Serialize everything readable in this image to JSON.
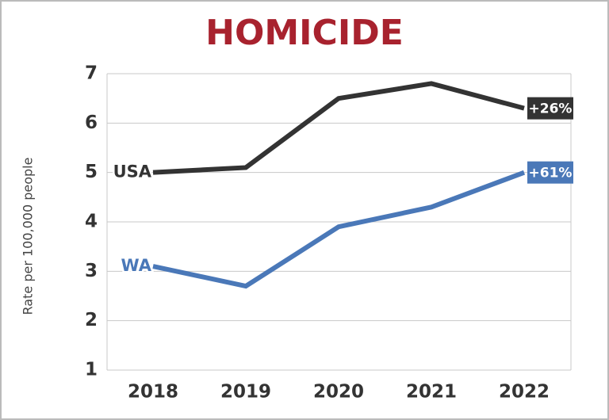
{
  "chart_data": {
    "type": "line",
    "title": "HOMICIDE",
    "y_label": "Rate per 100,000 people",
    "categories": [
      "2018",
      "2019",
      "2020",
      "2021",
      "2022"
    ],
    "series": [
      {
        "name": "USA",
        "color": "#333333",
        "values": [
          5.0,
          5.1,
          6.5,
          6.8,
          6.3
        ],
        "change_label": "+26%"
      },
      {
        "name": "WA",
        "color": "#4a78b8",
        "values": [
          3.1,
          2.7,
          3.9,
          4.3,
          5.0
        ],
        "change_label": "+61%"
      }
    ],
    "ylim": [
      1,
      7
    ],
    "yticks": [
      1,
      2,
      3,
      4,
      5,
      6,
      7
    ],
    "grid": true
  }
}
